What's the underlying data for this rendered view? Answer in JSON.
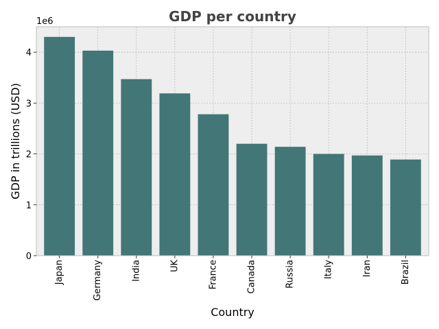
{
  "chart_data": {
    "type": "bar",
    "title": "GDP per country",
    "xlabel": "Country",
    "ylabel": "GDP in trillions (USD)",
    "y_offset_label": "1e6",
    "categories": [
      "Japan",
      "Germany",
      "India",
      "UK",
      "France",
      "Canada",
      "Russia",
      "Italy",
      "Iran",
      "Brazil"
    ],
    "values": [
      4.3,
      4.03,
      3.47,
      3.19,
      2.78,
      2.2,
      2.14,
      2.0,
      1.97,
      1.89
    ],
    "ylim": [
      0,
      4.5
    ],
    "yticks": [
      0,
      1,
      2,
      3,
      4
    ],
    "grid": true,
    "colors": {
      "bar": "#437676",
      "plot_bg": "#eeeeee",
      "grid": "#b2b2b2",
      "spine": "#bcbcbc",
      "title": "#444444"
    }
  }
}
